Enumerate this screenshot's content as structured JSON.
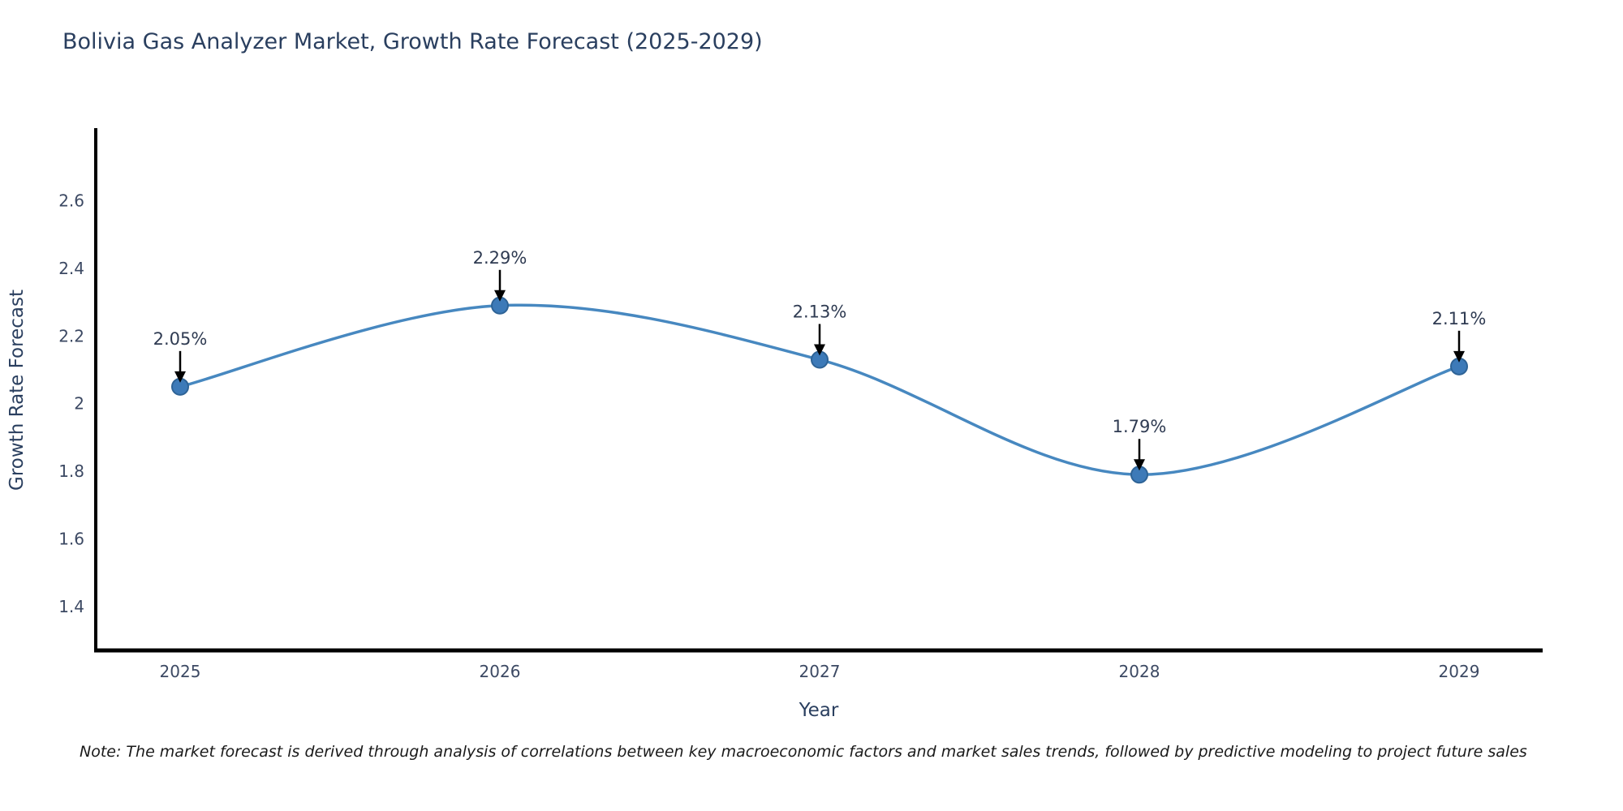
{
  "chart": {
    "title": "Bolivia Gas Analyzer Market, Growth Rate Forecast (2025-2029)",
    "xlabel": "Year",
    "ylabel": "Growth Rate Forecast"
  },
  "note": "Note: The market forecast is derived through analysis of correlations between key macroeconomic factors and market sales trends, followed by predictive modeling to project future sales",
  "colors": {
    "background": "#ffffff",
    "line": "#4788c0",
    "marker_fill": "#3d7ab8",
    "marker_edge": "#2e6396",
    "axis_line": "#000000",
    "arrow": "#000000",
    "title_text": "#2a3f5f",
    "tick_text": "#3c4963",
    "annotation_text": "#2f3b52",
    "note_text": "#1a1a1a"
  },
  "chart_data": {
    "type": "line",
    "line_shape": "spline",
    "markers": true,
    "grid": false,
    "legend": false,
    "title": "Bolivia Gas Analyzer Market, Growth Rate Forecast (2025-2029)",
    "xlabel": "Year",
    "ylabel": "Growth Rate Forecast",
    "x": [
      2025,
      2026,
      2027,
      2028,
      2029
    ],
    "xticks": [
      "2025",
      "2026",
      "2027",
      "2028",
      "2029"
    ],
    "series": [
      {
        "name": "Growth Rate Forecast",
        "values": [
          2.05,
          2.29,
          2.13,
          1.79,
          2.11
        ]
      }
    ],
    "point_labels": [
      "2.05%",
      "2.29%",
      "2.13%",
      "1.79%",
      "2.11%"
    ],
    "yticks": [
      "1.4",
      "1.6",
      "1.8",
      "2",
      "2.2",
      "2.4",
      "2.6"
    ],
    "ylim": [
      1.27,
      2.81
    ],
    "annotation_style": "value label above each point with black arrow pointing down to marker"
  }
}
